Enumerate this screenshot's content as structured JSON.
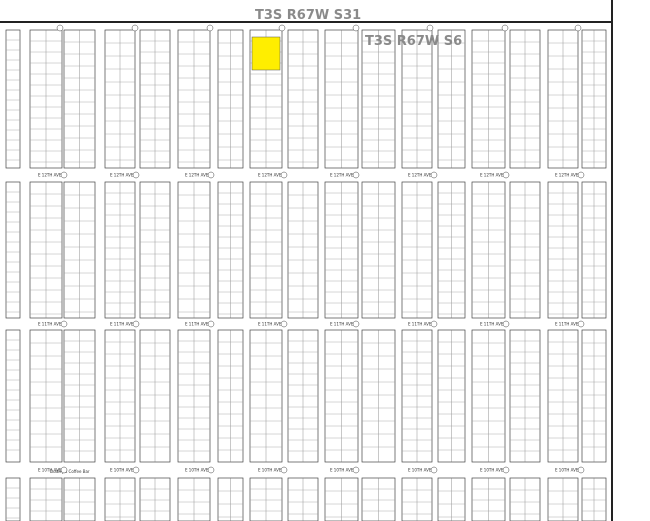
{
  "township_labels": [
    "T3S R67W S31",
    "T3S R67W S6"
  ],
  "avenues": [
    "E 12TH AVE",
    "E 11TH AVE",
    "E 10TH AVE"
  ],
  "place_label": "Dudley's Coffee Bar"
}
